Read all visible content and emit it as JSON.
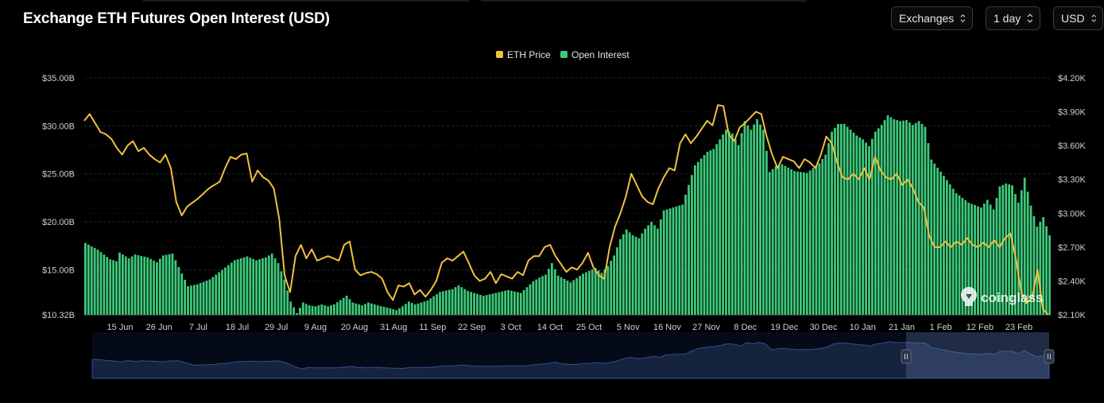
{
  "header": {
    "title": "Exchange ETH Futures Open Interest (USD)",
    "controls": [
      {
        "label": "Exchanges",
        "icon": "updown-chevron-icon"
      },
      {
        "label": "1 day",
        "icon": "updown-chevron-icon"
      },
      {
        "label": "USD",
        "icon": "updown-chevron-icon"
      }
    ]
  },
  "watermark": {
    "text": "coinglass",
    "icon": "coinglass-logo-icon"
  },
  "colors": {
    "background": "#000000",
    "open_interest": "#3cc97a",
    "eth_price": "#f0c040",
    "grid": "#2a2a2a",
    "navigator_fill": "#16233f",
    "navigator_line": "#2f4f8f"
  },
  "chart_data": {
    "type": "bar",
    "legend": {
      "placement": "top-center",
      "items": [
        "ETH Price",
        "Open Interest"
      ]
    },
    "grid": true,
    "x_tick_labels": [
      "15 Jun",
      "26 Jun",
      "7 Jul",
      "18 Jul",
      "29 Jul",
      "9 Aug",
      "20 Aug",
      "31 Aug",
      "11 Sep",
      "22 Sep",
      "3 Oct",
      "14 Oct",
      "25 Oct",
      "5 Nov",
      "16 Nov",
      "27 Nov",
      "8 Dec",
      "19 Dec",
      "30 Dec",
      "10 Jan",
      "21 Jan",
      "1 Feb",
      "12 Feb",
      "23 Feb"
    ],
    "y_left": {
      "tick_labels": [
        "$10.32B",
        "$15.00B",
        "$20.00B",
        "$25.00B",
        "$30.00B",
        "$35.00B"
      ],
      "range": [
        10.32,
        35.0
      ],
      "unit": "USD billions"
    },
    "y_right": {
      "tick_labels": [
        "$2.10K",
        "$2.40K",
        "$2.70K",
        "$3.00K",
        "$3.30K",
        "$3.60K",
        "$3.90K",
        "$4.20K"
      ],
      "range": [
        2.1,
        4.2
      ],
      "unit": "USD thousands"
    },
    "series": [
      {
        "name": "Open Interest",
        "axis": "left",
        "kind": "bar",
        "keyframes": [
          [
            0,
            17.8
          ],
          [
            4,
            17.1
          ],
          [
            8,
            16.1
          ],
          [
            10,
            15.9
          ],
          [
            11,
            16.8
          ],
          [
            14,
            16.2
          ],
          [
            16,
            16.6
          ],
          [
            20,
            16.3
          ],
          [
            23,
            15.8
          ],
          [
            25,
            16.5
          ],
          [
            28,
            16.7
          ],
          [
            30,
            15.3
          ],
          [
            33,
            13.3
          ],
          [
            36,
            13.5
          ],
          [
            40,
            14.0
          ],
          [
            44,
            15.0
          ],
          [
            48,
            16.0
          ],
          [
            52,
            16.4
          ],
          [
            55,
            16.0
          ],
          [
            58,
            16.3
          ],
          [
            60,
            16.7
          ],
          [
            62,
            15.7
          ],
          [
            64,
            14.0
          ],
          [
            66,
            11.7
          ],
          [
            68,
            10.5
          ],
          [
            70,
            11.6
          ],
          [
            72,
            11.3
          ],
          [
            74,
            11.2
          ],
          [
            76,
            11.4
          ],
          [
            78,
            11.2
          ],
          [
            80,
            11.4
          ],
          [
            84,
            12.3
          ],
          [
            86,
            11.6
          ],
          [
            89,
            11.3
          ],
          [
            91,
            11.6
          ],
          [
            94,
            11.3
          ],
          [
            98,
            11.0
          ],
          [
            100,
            10.8
          ],
          [
            102,
            11.2
          ],
          [
            104,
            11.7
          ],
          [
            106,
            11.4
          ],
          [
            110,
            11.8
          ],
          [
            114,
            12.7
          ],
          [
            118,
            13.0
          ],
          [
            120,
            13.4
          ],
          [
            123,
            12.8
          ],
          [
            126,
            12.5
          ],
          [
            128,
            12.3
          ],
          [
            132,
            12.6
          ],
          [
            136,
            12.9
          ],
          [
            140,
            12.6
          ],
          [
            144,
            13.8
          ],
          [
            146,
            14.2
          ],
          [
            148,
            14.5
          ],
          [
            150,
            15.7
          ],
          [
            152,
            14.4
          ],
          [
            156,
            13.7
          ],
          [
            160,
            14.6
          ],
          [
            164,
            15.2
          ],
          [
            166,
            14.7
          ],
          [
            168,
            15.4
          ],
          [
            170,
            16.5
          ],
          [
            172,
            18.2
          ],
          [
            174,
            19.2
          ],
          [
            176,
            18.6
          ],
          [
            178,
            18.3
          ],
          [
            180,
            19.3
          ],
          [
            182,
            20.0
          ],
          [
            184,
            19.3
          ],
          [
            186,
            21.2
          ],
          [
            188,
            21.4
          ],
          [
            192,
            21.8
          ],
          [
            196,
            25.9
          ],
          [
            200,
            27.3
          ],
          [
            202,
            27.6
          ],
          [
            206,
            29.6
          ],
          [
            208,
            29.2
          ],
          [
            210,
            28.0
          ],
          [
            212,
            30.5
          ],
          [
            214,
            29.6
          ],
          [
            216,
            30.7
          ],
          [
            218,
            29.6
          ],
          [
            220,
            25.2
          ],
          [
            222,
            25.8
          ],
          [
            224,
            26.0
          ],
          [
            228,
            25.3
          ],
          [
            232,
            25.1
          ],
          [
            236,
            26.1
          ],
          [
            238,
            27.0
          ],
          [
            240,
            29.4
          ],
          [
            242,
            30.2
          ],
          [
            244,
            30.2
          ],
          [
            246,
            29.6
          ],
          [
            248,
            29.0
          ],
          [
            250,
            28.6
          ],
          [
            252,
            27.9
          ],
          [
            254,
            29.4
          ],
          [
            256,
            30.1
          ],
          [
            258,
            31.1
          ],
          [
            260,
            30.7
          ],
          [
            262,
            30.5
          ],
          [
            264,
            30.6
          ],
          [
            266,
            30.1
          ],
          [
            268,
            30.5
          ],
          [
            270,
            29.9
          ],
          [
            272,
            26.5
          ],
          [
            276,
            24.8
          ],
          [
            280,
            23.0
          ],
          [
            284,
            22.0
          ],
          [
            288,
            21.5
          ],
          [
            290,
            22.3
          ],
          [
            292,
            21.3
          ],
          [
            294,
            23.7
          ],
          [
            296,
            24.0
          ],
          [
            298,
            23.8
          ],
          [
            300,
            22.0
          ],
          [
            302,
            24.6
          ],
          [
            304,
            21.7
          ],
          [
            306,
            19.5
          ],
          [
            308,
            20.5
          ],
          [
            310,
            18.6
          ]
        ]
      },
      {
        "name": "ETH Price",
        "axis": "right",
        "kind": "line",
        "keyframes": [
          [
            0,
            3.82
          ],
          [
            2,
            3.88
          ],
          [
            4,
            3.8
          ],
          [
            6,
            3.72
          ],
          [
            8,
            3.7
          ],
          [
            10,
            3.66
          ],
          [
            12,
            3.58
          ],
          [
            14,
            3.52
          ],
          [
            16,
            3.6
          ],
          [
            18,
            3.64
          ],
          [
            20,
            3.55
          ],
          [
            22,
            3.58
          ],
          [
            24,
            3.52
          ],
          [
            26,
            3.48
          ],
          [
            28,
            3.45
          ],
          [
            30,
            3.52
          ],
          [
            32,
            3.4
          ],
          [
            34,
            3.1
          ],
          [
            36,
            2.98
          ],
          [
            38,
            3.06
          ],
          [
            42,
            3.13
          ],
          [
            46,
            3.22
          ],
          [
            50,
            3.28
          ],
          [
            52,
            3.4
          ],
          [
            54,
            3.5
          ],
          [
            56,
            3.48
          ],
          [
            58,
            3.52
          ],
          [
            60,
            3.53
          ],
          [
            62,
            3.28
          ],
          [
            64,
            3.38
          ],
          [
            66,
            3.32
          ],
          [
            68,
            3.29
          ],
          [
            70,
            3.22
          ],
          [
            72,
            2.95
          ],
          [
            74,
            2.45
          ],
          [
            76,
            2.3
          ],
          [
            78,
            2.62
          ],
          [
            80,
            2.72
          ],
          [
            82,
            2.6
          ],
          [
            84,
            2.68
          ],
          [
            86,
            2.58
          ],
          [
            88,
            2.6
          ],
          [
            90,
            2.62
          ],
          [
            92,
            2.6
          ],
          [
            94,
            2.58
          ],
          [
            96,
            2.72
          ],
          [
            98,
            2.75
          ],
          [
            100,
            2.5
          ],
          [
            102,
            2.45
          ],
          [
            104,
            2.47
          ],
          [
            106,
            2.48
          ],
          [
            108,
            2.46
          ],
          [
            110,
            2.42
          ],
          [
            112,
            2.3
          ],
          [
            114,
            2.23
          ],
          [
            116,
            2.36
          ],
          [
            118,
            2.35
          ],
          [
            120,
            2.38
          ],
          [
            122,
            2.28
          ],
          [
            124,
            2.32
          ],
          [
            126,
            2.26
          ],
          [
            128,
            2.32
          ],
          [
            130,
            2.4
          ],
          [
            132,
            2.56
          ],
          [
            134,
            2.6
          ],
          [
            136,
            2.58
          ],
          [
            138,
            2.62
          ],
          [
            140,
            2.66
          ],
          [
            142,
            2.56
          ],
          [
            144,
            2.45
          ],
          [
            146,
            2.4
          ],
          [
            148,
            2.42
          ],
          [
            150,
            2.48
          ],
          [
            152,
            2.38
          ],
          [
            154,
            2.46
          ],
          [
            156,
            2.44
          ],
          [
            158,
            2.42
          ],
          [
            160,
            2.48
          ],
          [
            162,
            2.45
          ],
          [
            164,
            2.58
          ],
          [
            166,
            2.62
          ],
          [
            168,
            2.62
          ],
          [
            170,
            2.7
          ],
          [
            172,
            2.72
          ],
          [
            174,
            2.62
          ],
          [
            176,
            2.55
          ],
          [
            178,
            2.48
          ],
          [
            180,
            2.52
          ],
          [
            182,
            2.5
          ],
          [
            184,
            2.56
          ],
          [
            186,
            2.65
          ],
          [
            188,
            2.52
          ],
          [
            190,
            2.45
          ],
          [
            192,
            2.42
          ],
          [
            194,
            2.7
          ],
          [
            196,
            2.88
          ],
          [
            198,
            3.0
          ],
          [
            200,
            3.15
          ],
          [
            202,
            3.35
          ],
          [
            204,
            3.25
          ],
          [
            206,
            3.15
          ],
          [
            208,
            3.1
          ],
          [
            210,
            3.08
          ],
          [
            212,
            3.22
          ],
          [
            214,
            3.32
          ],
          [
            216,
            3.4
          ],
          [
            218,
            3.38
          ],
          [
            220,
            3.62
          ],
          [
            222,
            3.7
          ],
          [
            224,
            3.62
          ],
          [
            226,
            3.68
          ],
          [
            228,
            3.75
          ],
          [
            230,
            3.82
          ],
          [
            232,
            3.78
          ],
          [
            234,
            3.96
          ],
          [
            236,
            3.95
          ],
          [
            238,
            3.7
          ],
          [
            240,
            3.64
          ],
          [
            242,
            3.76
          ],
          [
            244,
            3.8
          ],
          [
            246,
            3.85
          ],
          [
            248,
            3.9
          ],
          [
            250,
            3.88
          ],
          [
            252,
            3.68
          ],
          [
            254,
            3.52
          ],
          [
            256,
            3.4
          ],
          [
            258,
            3.5
          ],
          [
            260,
            3.48
          ],
          [
            262,
            3.46
          ],
          [
            264,
            3.4
          ],
          [
            266,
            3.48
          ],
          [
            268,
            3.45
          ],
          [
            270,
            3.4
          ],
          [
            272,
            3.52
          ],
          [
            274,
            3.68
          ],
          [
            276,
            3.62
          ],
          [
            278,
            3.45
          ],
          [
            280,
            3.32
          ],
          [
            282,
            3.3
          ],
          [
            284,
            3.35
          ],
          [
            286,
            3.3
          ],
          [
            288,
            3.4
          ],
          [
            290,
            3.3
          ],
          [
            292,
            3.5
          ],
          [
            294,
            3.38
          ],
          [
            296,
            3.32
          ],
          [
            298,
            3.3
          ],
          [
            300,
            3.35
          ],
          [
            302,
            3.25
          ],
          [
            304,
            3.3
          ],
          [
            306,
            3.22
          ],
          [
            308,
            3.1
          ],
          [
            310,
            3.05
          ],
          [
            312,
            2.8
          ],
          [
            314,
            2.7
          ],
          [
            316,
            2.7
          ],
          [
            318,
            2.75
          ],
          [
            320,
            2.7
          ],
          [
            322,
            2.75
          ],
          [
            324,
            2.72
          ],
          [
            326,
            2.78
          ],
          [
            328,
            2.72
          ],
          [
            330,
            2.7
          ],
          [
            332,
            2.74
          ],
          [
            334,
            2.7
          ],
          [
            336,
            2.76
          ],
          [
            338,
            2.7
          ],
          [
            340,
            2.78
          ],
          [
            342,
            2.82
          ],
          [
            344,
            2.6
          ],
          [
            346,
            2.3
          ],
          [
            348,
            2.2
          ],
          [
            350,
            2.25
          ],
          [
            352,
            2.5
          ],
          [
            354,
            2.15
          ],
          [
            356,
            2.1
          ]
        ]
      }
    ]
  }
}
